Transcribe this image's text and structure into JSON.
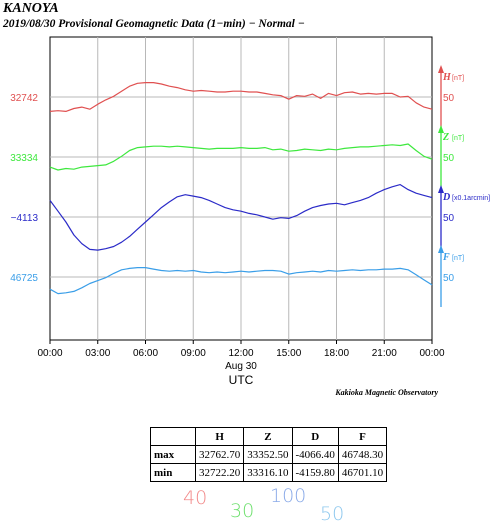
{
  "header": {
    "station": "KANOYA",
    "subtitle": "2019/08/30  Provisional Geomagnetic Data (1−min)  − Normal −"
  },
  "credit": "Kakioka Magnetic Observatory",
  "chart_data": {
    "type": "line",
    "x_ticks": [
      "00:00",
      "03:00",
      "06:00",
      "09:00",
      "12:00",
      "15:00",
      "18:00",
      "21:00",
      "00:00"
    ],
    "x_range_hours": [
      0,
      24
    ],
    "x_date_label": "Aug 30",
    "x_axis_label": "UTC",
    "grid": true,
    "series": [
      {
        "name": "H",
        "unit": "[nT]",
        "color": "#e05050",
        "base_label": "32742",
        "scale_label": "50",
        "base_value": 32742,
        "scale_step": 50,
        "x": [
          0,
          0.5,
          1,
          1.5,
          2,
          2.5,
          3,
          3.5,
          4,
          4.5,
          5,
          5.5,
          6,
          6.5,
          7,
          7.5,
          8,
          8.5,
          9,
          9.5,
          10,
          10.5,
          11,
          11.5,
          12,
          12.5,
          13,
          13.5,
          14,
          14.5,
          15,
          15.5,
          16,
          16.5,
          17,
          17.5,
          18,
          18.5,
          19,
          19.5,
          20,
          20.5,
          21,
          21.5,
          22,
          22.5,
          23,
          23.5,
          24
        ],
        "y": [
          32722,
          32723,
          32722,
          32726,
          32728,
          32725,
          32732,
          32738,
          32743,
          32750,
          32757,
          32761,
          32762,
          32762,
          32760,
          32757,
          32755,
          32752,
          32750,
          32751,
          32750,
          32749,
          32749,
          32750,
          32750,
          32749,
          32749,
          32747,
          32745,
          32744,
          32739,
          32744,
          32743,
          32746,
          32740,
          32747,
          32744,
          32748,
          32749,
          32746,
          32747,
          32746,
          32747,
          32747,
          32742,
          32743,
          32734,
          32728,
          32725
        ]
      },
      {
        "name": "Z",
        "unit": "[nT]",
        "color": "#3ee83e",
        "base_label": "33334",
        "scale_label": "50",
        "base_value": 33334,
        "scale_step": 50,
        "x": [
          0,
          0.5,
          1,
          1.5,
          2,
          2.5,
          3,
          3.5,
          4,
          4.5,
          5,
          5.5,
          6,
          6.5,
          7,
          7.5,
          8,
          8.5,
          9,
          9.5,
          10,
          10.5,
          11,
          11.5,
          12,
          12.5,
          13,
          13.5,
          14,
          14.5,
          15,
          15.5,
          16,
          16.5,
          17,
          17.5,
          18,
          18.5,
          19,
          19.5,
          20,
          20.5,
          21,
          21.5,
          22,
          22.5,
          23,
          23.5,
          24
        ],
        "y": [
          33320,
          33316,
          33318,
          33317,
          33320,
          33321,
          33322,
          33323,
          33328,
          33335,
          33343,
          33347,
          33348,
          33349,
          33349,
          33348,
          33349,
          33348,
          33347,
          33346,
          33345,
          33346,
          33346,
          33346,
          33347,
          33346,
          33346,
          33347,
          33344,
          33345,
          33342,
          33343,
          33345,
          33344,
          33343,
          33345,
          33344,
          33346,
          33347,
          33348,
          33348,
          33349,
          33350,
          33351,
          33350,
          33352,
          33343,
          33335,
          33331
        ]
      },
      {
        "name": "D",
        "unit": "[x0.1arcmin]",
        "color": "#2b2bc8",
        "base_label": "−4113",
        "scale_label": "50",
        "base_value": -4113,
        "scale_step": 50,
        "x": [
          0,
          0.5,
          1,
          1.5,
          2,
          2.5,
          3,
          3.5,
          4,
          4.5,
          5,
          5.5,
          6,
          6.5,
          7,
          7.5,
          8,
          8.5,
          9,
          9.5,
          10,
          10.5,
          11,
          11.5,
          12,
          12.5,
          13,
          13.5,
          14,
          14.5,
          15,
          15.5,
          16,
          16.5,
          17,
          17.5,
          18,
          18.5,
          19,
          19.5,
          20,
          20.5,
          21,
          21.5,
          22,
          22.5,
          23,
          23.5,
          24
        ],
        "y": [
          -4090,
          -4105,
          -4120,
          -4138,
          -4150,
          -4158,
          -4159,
          -4157,
          -4154,
          -4148,
          -4140,
          -4130,
          -4120,
          -4110,
          -4100,
          -4092,
          -4085,
          -4082,
          -4084,
          -4086,
          -4090,
          -4095,
          -4100,
          -4103,
          -4105,
          -4108,
          -4110,
          -4113,
          -4116,
          -4114,
          -4115,
          -4111,
          -4105,
          -4100,
          -4097,
          -4095,
          -4094,
          -4096,
          -4093,
          -4090,
          -4086,
          -4080,
          -4075,
          -4071,
          -4068,
          -4075,
          -4080,
          -4083,
          -4086
        ]
      },
      {
        "name": "F",
        "unit": "[nT]",
        "color": "#3a9ee8",
        "base_label": "46725",
        "scale_label": "50",
        "base_value": 46725,
        "scale_step": 50,
        "x": [
          0,
          0.5,
          1,
          1.5,
          2,
          2.5,
          3,
          3.5,
          4,
          4.5,
          5,
          5.5,
          6,
          6.5,
          7,
          7.5,
          8,
          8.5,
          9,
          9.5,
          10,
          10.5,
          11,
          11.5,
          12,
          12.5,
          13,
          13.5,
          14,
          14.5,
          15,
          15.5,
          16,
          16.5,
          17,
          17.5,
          18,
          18.5,
          19,
          19.5,
          20,
          20.5,
          21,
          21.5,
          22,
          22.5,
          23,
          23.5,
          24
        ],
        "y": [
          46708,
          46702,
          46703,
          46705,
          46710,
          46716,
          46720,
          46724,
          46730,
          46735,
          46737,
          46738,
          46738,
          46736,
          46734,
          46733,
          46734,
          46733,
          46734,
          46732,
          46731,
          46732,
          46731,
          46732,
          46733,
          46732,
          46733,
          46734,
          46734,
          46733,
          46729,
          46731,
          46732,
          46733,
          46732,
          46734,
          46733,
          46734,
          46735,
          46734,
          46735,
          46735,
          46736,
          46736,
          46737,
          46735,
          46728,
          46721,
          46714
        ]
      }
    ]
  },
  "stats_table": {
    "headers": [
      "",
      "H",
      "Z",
      "D",
      "F"
    ],
    "rows": [
      {
        "label": "max",
        "values": [
          "32762.70",
          "33352.50",
          "-4066.40",
          "46748.30"
        ]
      },
      {
        "label": "min",
        "values": [
          "32722.20",
          "33316.10",
          "-4159.80",
          "46701.10"
        ]
      }
    ]
  },
  "scale_legend": [
    {
      "text": "40",
      "color": "#f28a8a"
    },
    {
      "text": "30",
      "color": "#6ee06e"
    },
    {
      "text": "100",
      "color": "#8aaae8"
    },
    {
      "text": "50",
      "color": "#8ec8ee"
    }
  ]
}
